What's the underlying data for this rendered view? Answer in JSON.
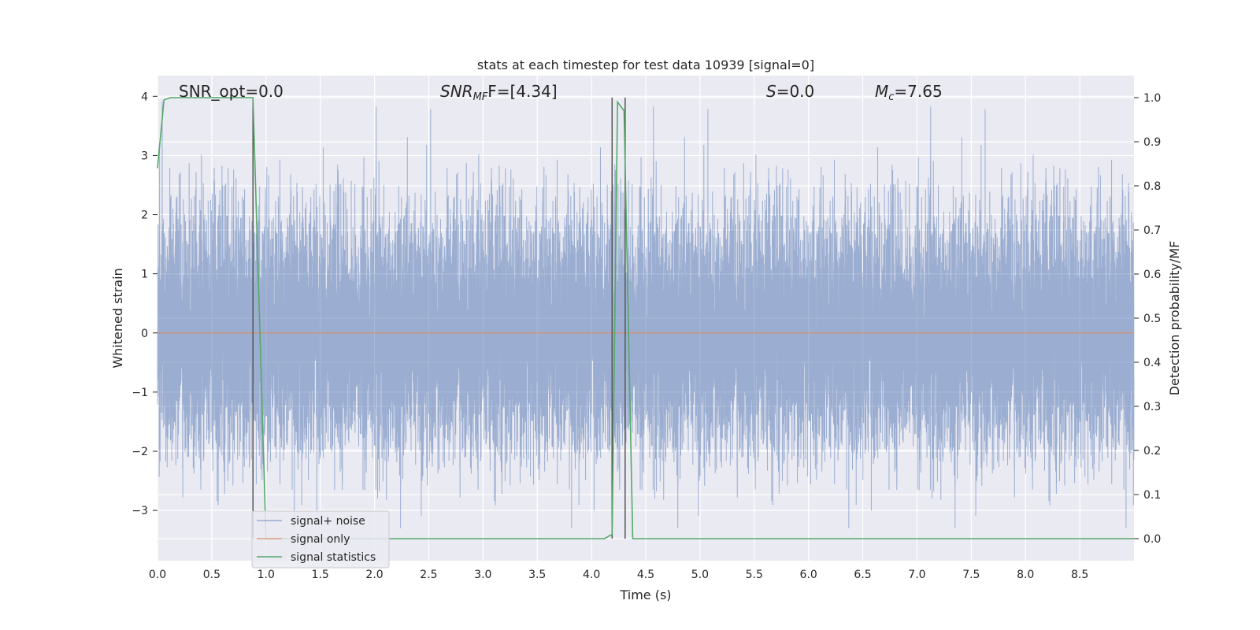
{
  "chart_data": {
    "type": "line",
    "title": "stats at each timestep for test data 10939 [signal=0]",
    "xlabel": "Time (s)",
    "ylabel": "Whitened strain",
    "y2label": "Detection probability/MF",
    "xlim": [
      0.0,
      9.0
    ],
    "ylim": [
      -3.85,
      4.35
    ],
    "y2lim": [
      -0.05,
      1.05
    ],
    "x_ticks": [
      "0.0",
      "0.5",
      "1.0",
      "1.5",
      "2.0",
      "2.5",
      "3.0",
      "3.5",
      "4.0",
      "4.5",
      "5.0",
      "5.5",
      "6.0",
      "6.5",
      "7.0",
      "7.5",
      "8.0",
      "8.5"
    ],
    "y_ticks": [
      "−3",
      "−2",
      "−1",
      "0",
      "1",
      "2",
      "3",
      "4"
    ],
    "y2_ticks": [
      "0.0",
      "0.1",
      "0.2",
      "0.3",
      "0.4",
      "0.5",
      "0.6",
      "0.7",
      "0.8",
      "0.9",
      "1.0"
    ],
    "grid": true,
    "legend_position": "lower-left",
    "annotations": {
      "snr_opt": "SNR_opt=0.0",
      "snr_mf_prefix": "SNR",
      "snr_mf_sub": "MF",
      "snr_mf_value": "F=[4.34]",
      "s_label": "S",
      "s_value": "=0.0",
      "mc_label": "M",
      "mc_sub": "c",
      "mc_value": "=7.65"
    },
    "series": [
      {
        "name": "signal+ noise",
        "color": "#4c72b0",
        "axis": "left",
        "style": "noise",
        "sample_rate_hz": 2048,
        "typical_range": [
          -1.75,
          1.75
        ],
        "peak_range": [
          -3.3,
          4.0
        ]
      },
      {
        "name": "signal only",
        "color": "#dd8452",
        "axis": "left",
        "x": [
          0.0,
          9.0
        ],
        "y": [
          0.0,
          0.0
        ]
      },
      {
        "name": "signal statistics",
        "color": "#55a868",
        "axis": "right",
        "x": [
          0.0,
          0.06,
          0.12,
          0.88,
          1.0,
          4.12,
          4.19,
          4.24,
          4.3,
          4.38,
          9.0
        ],
        "y": [
          0.84,
          0.995,
          1.0,
          1.0,
          0.0,
          0.0,
          0.01,
          0.99,
          0.97,
          0.0,
          0.0
        ]
      }
    ],
    "vlines": {
      "color": "#555555",
      "x": [
        0.88,
        4.19,
        4.31
      ]
    }
  }
}
